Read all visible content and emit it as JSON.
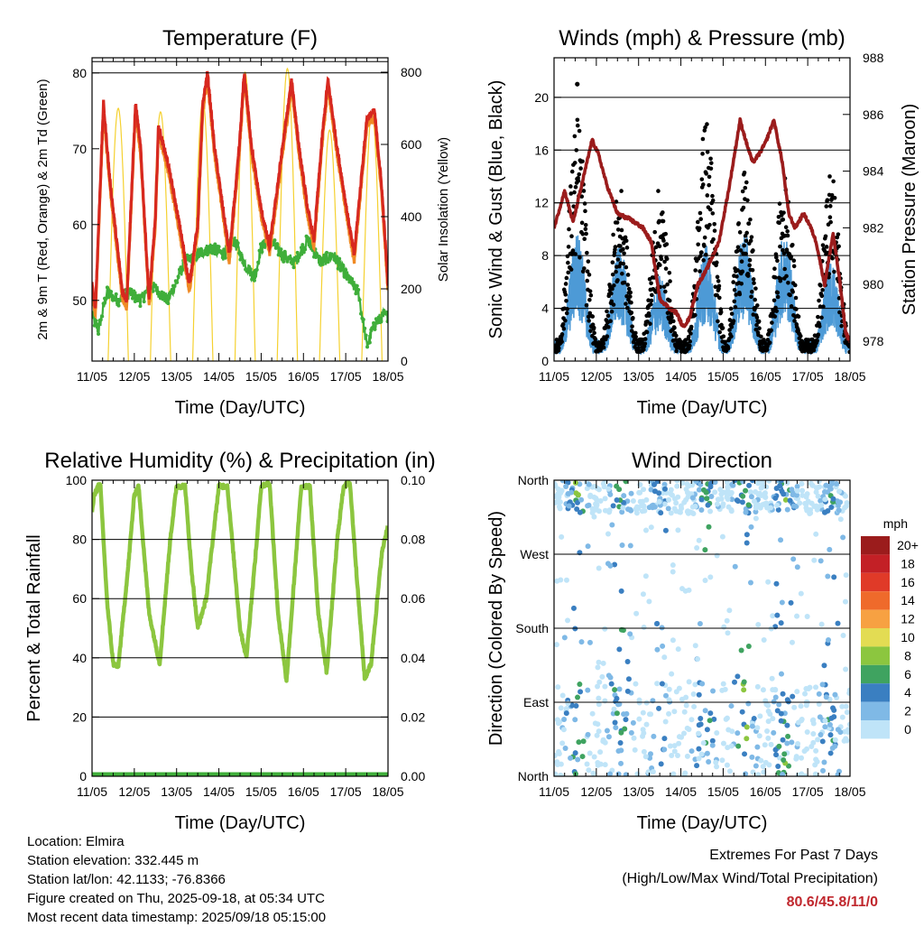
{
  "colors": {
    "t2m": "#d7281f",
    "t9m": "#f08a24",
    "td": "#3fae3a",
    "insolation": "#f5d130",
    "gust": "#000000",
    "wind": "#4d9ad6",
    "pressure": "#9b1c1c",
    "rh": "#8cc63f",
    "precip": "#3fae3a",
    "extreme": "#c0272d"
  },
  "x_tick_labels": [
    "11/05",
    "12/05",
    "13/05",
    "14/05",
    "15/05",
    "16/05",
    "17/05",
    "18/05"
  ],
  "chart_data": [
    {
      "id": "temperature",
      "type": "line",
      "title": "Temperature (F)",
      "xlabel": "Time (Day/UTC)",
      "ylabel": "2m & 9m T (Red, Orange) & 2m Td (Green)",
      "ylabel_right": "Solar Insolation (Yellow)",
      "xlim": [
        0,
        7
      ],
      "ylim": [
        42,
        82
      ],
      "ylim_right": [
        0,
        840
      ],
      "yticks": [
        50,
        60,
        70,
        80
      ],
      "yticks_right": [
        0,
        200,
        400,
        600,
        800
      ],
      "hlines": [
        80,
        81.5
      ],
      "grid": false,
      "series": {
        "t2m_keypoints": [
          [
            0,
            52
          ],
          [
            0.08,
            49
          ],
          [
            0.27,
            76
          ],
          [
            0.42,
            66
          ],
          [
            0.72,
            51
          ],
          [
            0.82,
            50
          ],
          [
            1.03,
            76
          ],
          [
            1.15,
            70
          ],
          [
            1.35,
            50
          ],
          [
            1.5,
            61
          ],
          [
            1.57,
            73
          ],
          [
            1.8,
            68
          ],
          [
            2.1,
            59
          ],
          [
            2.3,
            52
          ],
          [
            2.5,
            60
          ],
          [
            2.62,
            76
          ],
          [
            2.73,
            80
          ],
          [
            2.9,
            70
          ],
          [
            3.1,
            62
          ],
          [
            3.25,
            56
          ],
          [
            3.48,
            70
          ],
          [
            3.6,
            80
          ],
          [
            3.78,
            70
          ],
          [
            4.0,
            62
          ],
          [
            4.2,
            57
          ],
          [
            4.5,
            70
          ],
          [
            4.72,
            79
          ],
          [
            4.9,
            70
          ],
          [
            5.1,
            62
          ],
          [
            5.25,
            58
          ],
          [
            5.45,
            72
          ],
          [
            5.58,
            79
          ],
          [
            5.8,
            70
          ],
          [
            6.05,
            61
          ],
          [
            6.2,
            56
          ],
          [
            6.5,
            74
          ],
          [
            6.68,
            75
          ],
          [
            6.85,
            65
          ],
          [
            7.0,
            52
          ]
        ],
        "t9m_offset": -1,
        "td_keypoints": [
          [
            0,
            48
          ],
          [
            0.15,
            46
          ],
          [
            0.35,
            51
          ],
          [
            0.6,
            50
          ],
          [
            0.9,
            51
          ],
          [
            1.15,
            50
          ],
          [
            1.4,
            52
          ],
          [
            1.8,
            50
          ],
          [
            2.2,
            55
          ],
          [
            2.5,
            56
          ],
          [
            2.8,
            57
          ],
          [
            3.1,
            56
          ],
          [
            3.35,
            58
          ],
          [
            3.6,
            55
          ],
          [
            3.85,
            53
          ],
          [
            4.0,
            57
          ],
          [
            4.2,
            58
          ],
          [
            4.5,
            56
          ],
          [
            4.8,
            55
          ],
          [
            5.1,
            58
          ],
          [
            5.4,
            55
          ],
          [
            5.7,
            56
          ],
          [
            6.05,
            53
          ],
          [
            6.3,
            51
          ],
          [
            6.5,
            44
          ],
          [
            6.7,
            47
          ],
          [
            6.9,
            48
          ]
        ],
        "insolation": {
          "peaks_day_fraction": [
            0.62,
            1.62,
            2.62,
            3.62,
            4.62,
            5.62,
            6.62
          ],
          "peak_values": [
            700,
            690,
            720,
            800,
            810,
            640,
            690
          ],
          "half_width_days": 0.24
        }
      }
    },
    {
      "id": "winds",
      "type": "scatter",
      "title": "Winds (mph) & Pressure (mb)",
      "xlabel": "Time (Day/UTC)",
      "ylabel": "Sonic Wind & Gust (Blue, Black)",
      "ylabel_right": "Station Pressure (Maroon)",
      "xlim": [
        0,
        7
      ],
      "ylim": [
        0,
        23
      ],
      "ylim_right": [
        977.3,
        988
      ],
      "yticks": [
        0,
        4,
        8,
        12,
        16,
        20
      ],
      "yticks_right": [
        978,
        980,
        982,
        984,
        986,
        988
      ],
      "hlines": [
        4,
        8,
        12,
        16,
        20
      ],
      "series": {
        "pressure_keypoints": [
          [
            0,
            982.0
          ],
          [
            0.25,
            983.3
          ],
          [
            0.45,
            982.2
          ],
          [
            0.7,
            983.8
          ],
          [
            0.9,
            985.1
          ],
          [
            1.05,
            984.6
          ],
          [
            1.25,
            983.5
          ],
          [
            1.5,
            982.5
          ],
          [
            1.8,
            982.3
          ],
          [
            2.1,
            982.0
          ],
          [
            2.3,
            981.5
          ],
          [
            2.5,
            979.5
          ],
          [
            2.7,
            979.2
          ],
          [
            2.9,
            979.0
          ],
          [
            3.05,
            978.5
          ],
          [
            3.2,
            978.8
          ],
          [
            3.4,
            980.0
          ],
          [
            3.6,
            980.5
          ],
          [
            3.9,
            981.5
          ],
          [
            4.15,
            983.5
          ],
          [
            4.4,
            985.8
          ],
          [
            4.55,
            985.0
          ],
          [
            4.7,
            984.3
          ],
          [
            4.85,
            984.6
          ],
          [
            5.0,
            985.0
          ],
          [
            5.2,
            985.8
          ],
          [
            5.4,
            984.3
          ],
          [
            5.55,
            982.5
          ],
          [
            5.7,
            982.0
          ],
          [
            5.9,
            982.5
          ],
          [
            6.05,
            982.1
          ],
          [
            6.2,
            981.5
          ],
          [
            6.4,
            980.0
          ],
          [
            6.6,
            981.8
          ],
          [
            6.75,
            980.2
          ],
          [
            6.9,
            978.3
          ],
          [
            7.0,
            978.0
          ]
        ],
        "wind_daily_peaks": [
          [
            0.55,
            9
          ],
          [
            1.55,
            8
          ],
          [
            2.5,
            6
          ],
          [
            3.6,
            8
          ],
          [
            4.5,
            9
          ],
          [
            5.45,
            9
          ],
          [
            6.55,
            7
          ]
        ],
        "gust_daily_peaks": [
          [
            0.55,
            17
          ],
          [
            1.55,
            12
          ],
          [
            2.5,
            12
          ],
          [
            3.6,
            17
          ],
          [
            4.5,
            13
          ],
          [
            5.45,
            13
          ],
          [
            6.55,
            13
          ]
        ],
        "max_gust_point": [
          0.55,
          21
        ]
      }
    },
    {
      "id": "humidity",
      "type": "line",
      "title": "Relative Humidity (%) & Precipitation (in)",
      "xlabel": "Time (Day/UTC)",
      "ylabel": "Percent & Total Rainfall",
      "xlim": [
        0,
        7
      ],
      "ylim": [
        0,
        100
      ],
      "ylim_right": [
        0,
        0.1
      ],
      "yticks": [
        0,
        20,
        40,
        60,
        80,
        100
      ],
      "yticks_right": [
        "0.00",
        "0.02",
        "0.04",
        "0.06",
        "0.08",
        "0.10"
      ],
      "hlines": [
        20,
        40,
        60,
        80,
        100
      ],
      "series": {
        "rh_keypoints": [
          [
            0,
            89
          ],
          [
            0.05,
            95
          ],
          [
            0.15,
            98
          ],
          [
            0.2,
            98
          ],
          [
            0.35,
            60
          ],
          [
            0.5,
            38
          ],
          [
            0.62,
            37
          ],
          [
            0.85,
            70
          ],
          [
            1.0,
            95
          ],
          [
            1.1,
            98
          ],
          [
            1.35,
            55
          ],
          [
            1.6,
            38
          ],
          [
            1.85,
            80
          ],
          [
            2.0,
            98
          ],
          [
            2.2,
            98
          ],
          [
            2.35,
            70
          ],
          [
            2.5,
            50
          ],
          [
            2.7,
            60
          ],
          [
            3.0,
            98
          ],
          [
            3.2,
            98
          ],
          [
            3.5,
            50
          ],
          [
            3.65,
            40
          ],
          [
            3.9,
            80
          ],
          [
            4.0,
            98
          ],
          [
            4.2,
            99
          ],
          [
            4.4,
            55
          ],
          [
            4.6,
            32
          ],
          [
            4.8,
            70
          ],
          [
            4.95,
            98
          ],
          [
            5.15,
            98
          ],
          [
            5.35,
            55
          ],
          [
            5.55,
            35
          ],
          [
            5.8,
            80
          ],
          [
            5.95,
            98
          ],
          [
            6.1,
            99
          ],
          [
            6.3,
            60
          ],
          [
            6.45,
            33
          ],
          [
            6.6,
            38
          ],
          [
            6.85,
            75
          ],
          [
            7.0,
            85
          ]
        ],
        "precip_total": 0
      }
    },
    {
      "id": "direction",
      "type": "scatter",
      "title": "Wind Direction",
      "xlabel": "Time (Day/UTC)",
      "ylabel": "Direction (Colored By Speed)",
      "xlim": [
        0,
        7
      ],
      "ylim": [
        0,
        360
      ],
      "ytick_labels": [
        "North",
        "East",
        "South",
        "West",
        "North"
      ],
      "yticks": [
        0,
        90,
        180,
        270,
        360
      ],
      "hlines": [
        90,
        180,
        270
      ],
      "colorbar": {
        "title": "mph",
        "labels": [
          "20+",
          "18",
          "16",
          "14",
          "12",
          "10",
          "8",
          "6",
          "4",
          "2",
          "0"
        ],
        "colors": [
          "#9b1c1c",
          "#c32026",
          "#e03a28",
          "#ef6a2b",
          "#f7a142",
          "#e3dc53",
          "#8cc63f",
          "#3fa360",
          "#3a7fc1",
          "#7fb9e6",
          "#bfe4f8"
        ]
      }
    }
  ],
  "footer": {
    "location": "Location: Elmira",
    "elevation": "Station elevation: 332.445 m",
    "latlon": "Station lat/lon: 42.1133; -76.8366",
    "created": "Figure created on Thu, 2025-09-18, at 05:34 UTC",
    "recent": "Most recent data timestamp: 2025/09/18 05:15:00",
    "extremes_title": "Extremes For Past 7 Days",
    "extremes_sub": "(High/Low/Max Wind/Total Precipitation)",
    "extremes_values": "80.6/45.8/11/0"
  }
}
